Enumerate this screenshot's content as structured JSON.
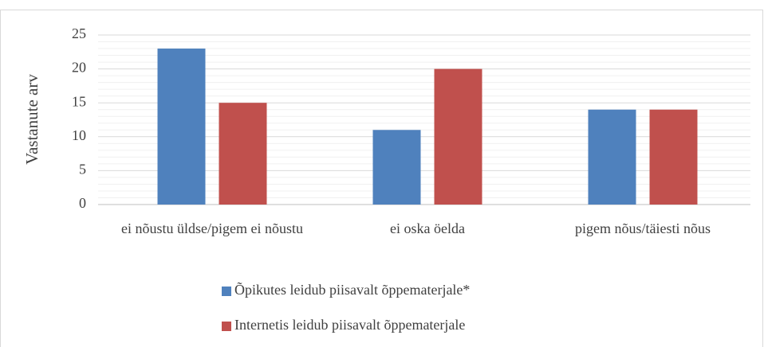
{
  "chart_data": {
    "type": "bar",
    "y_axis_label": "Vastanute arv",
    "categories": [
      "ei nõustu üldse/pigem ei nõustu",
      "ei oska öelda",
      "pigem nõus/täiesti nõus"
    ],
    "series": [
      {
        "name": "Õpikutes leidub piisavalt õppematerjale*",
        "color": "#4f81bd",
        "values": [
          23,
          11,
          14
        ]
      },
      {
        "name": "Internetis leidub piisavalt õppematerjale",
        "color": "#c0504d",
        "values": [
          15,
          20,
          14
        ]
      }
    ],
    "ylim": [
      0,
      25
    ],
    "yticks": [
      0,
      5,
      10,
      15,
      20,
      25
    ],
    "y_minor_ticks": [
      1,
      2,
      3,
      4,
      6,
      7,
      8,
      9,
      11,
      12,
      13,
      14,
      16,
      17,
      18,
      19,
      21,
      22,
      23,
      24
    ],
    "grid": true,
    "legend": "bottom"
  }
}
